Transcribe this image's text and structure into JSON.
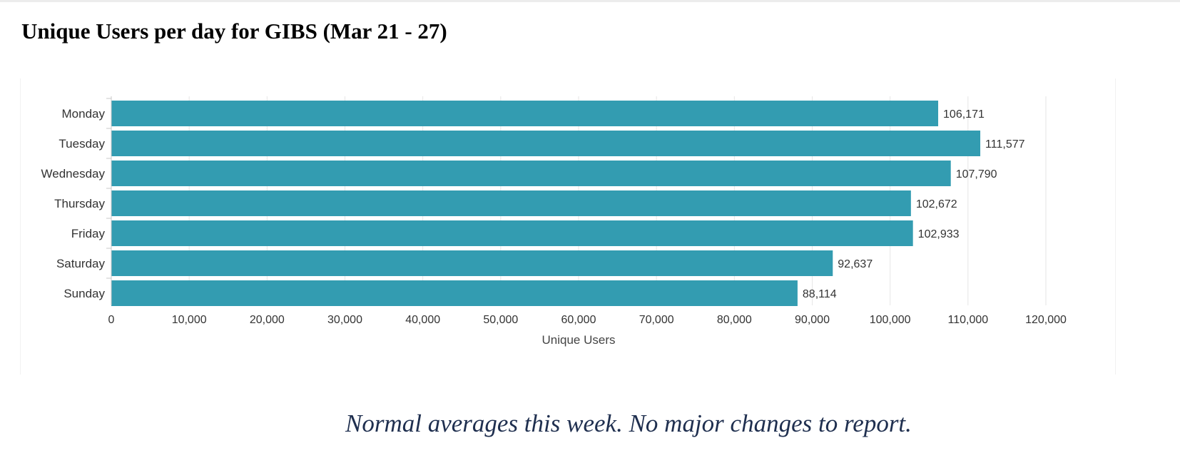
{
  "page": {
    "title": "Unique Users per day for GIBS (Mar 21 - 27)",
    "commentary": "Normal averages this week.  No major changes to report."
  },
  "chart_data": {
    "type": "bar",
    "orientation": "horizontal",
    "title": "",
    "xlabel": "Unique Users",
    "ylabel": "",
    "categories": [
      "Monday",
      "Tuesday",
      "Wednesday",
      "Thursday",
      "Friday",
      "Saturday",
      "Sunday"
    ],
    "values": [
      106171,
      111577,
      107790,
      102672,
      102933,
      92637,
      88114
    ],
    "value_labels": [
      "106,171",
      "111,577",
      "107,790",
      "102,672",
      "102,933",
      "92,637",
      "88,114"
    ],
    "xlim": [
      0,
      120000
    ],
    "x_ticks": [
      0,
      10000,
      20000,
      30000,
      40000,
      50000,
      60000,
      70000,
      80000,
      90000,
      100000,
      110000,
      120000
    ],
    "x_tick_labels": [
      "0",
      "10,000",
      "20,000",
      "30,000",
      "40,000",
      "50,000",
      "60,000",
      "70,000",
      "80,000",
      "90,000",
      "100,000",
      "110,000",
      "120,000"
    ],
    "bar_color": "#339cb1",
    "grid": "vertical",
    "legend": "none"
  }
}
